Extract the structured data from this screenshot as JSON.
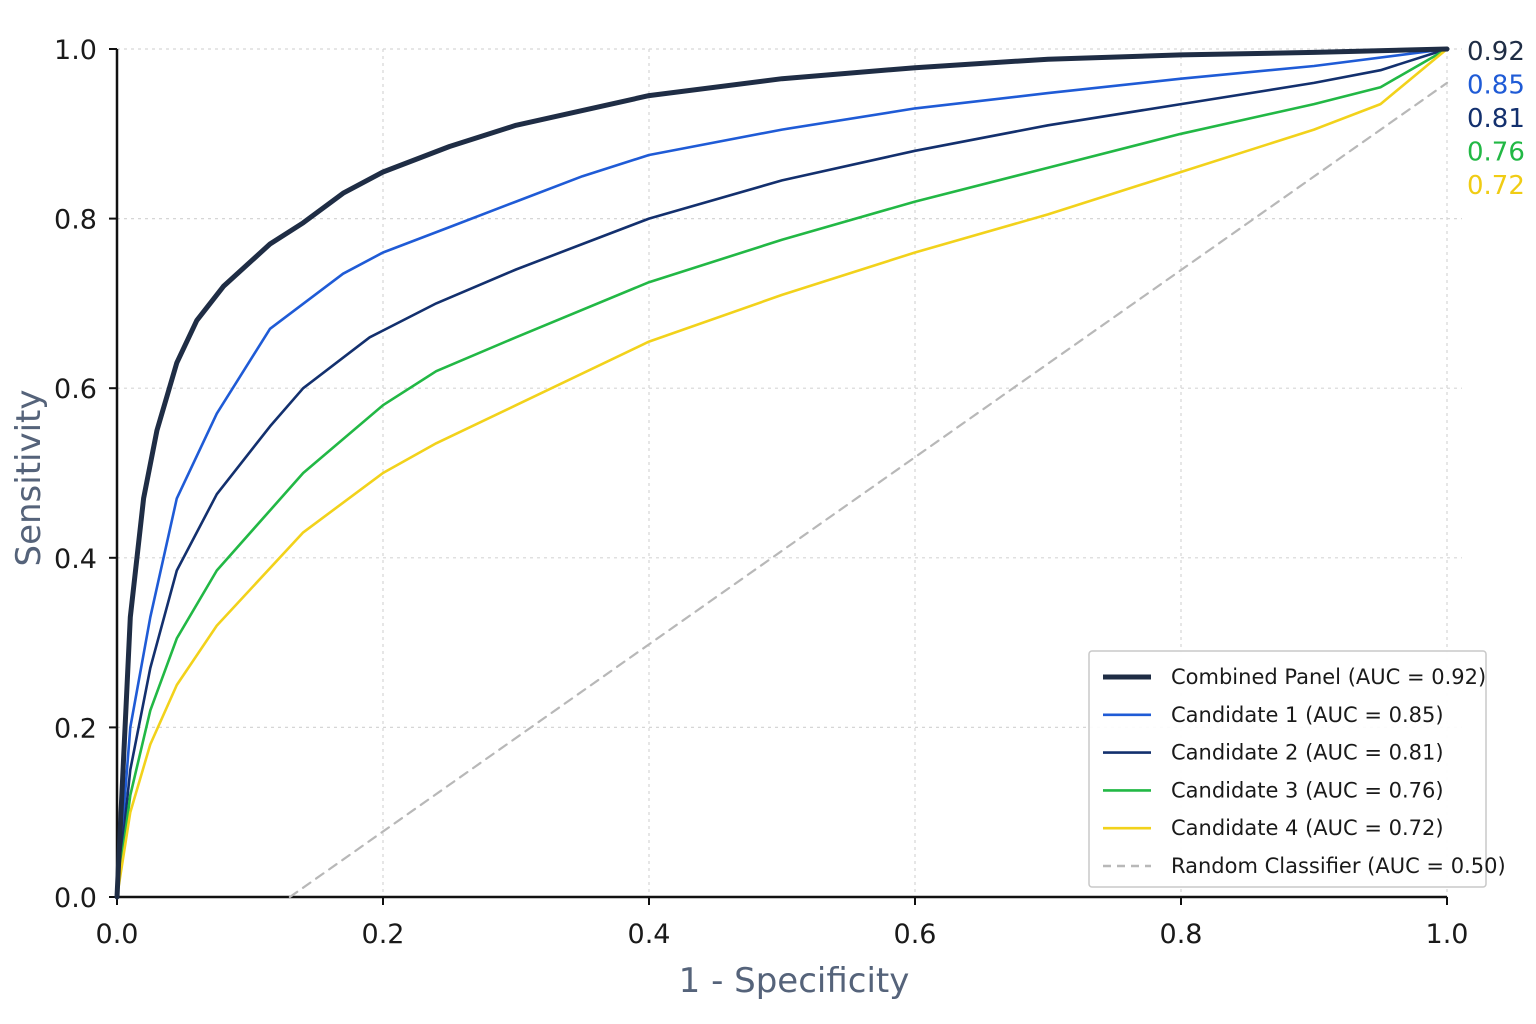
{
  "chart_data": {
    "type": "line",
    "xlabel": "1 - Specificity",
    "ylabel": "Sensitivity",
    "xlim": [
      0,
      1
    ],
    "ylim": [
      0,
      1
    ],
    "xticks": [
      "0.0",
      "0.2",
      "0.4",
      "0.6",
      "0.8",
      "1.0"
    ],
    "yticks": [
      "0.0",
      "0.2",
      "0.4",
      "0.6",
      "0.8",
      "1.0"
    ],
    "grid": true,
    "legend_position": "bottom-right",
    "series": [
      {
        "name": "Combined Panel (AUC = 0.92)",
        "end_label": "0.92",
        "color": "#1f2d45",
        "style": "thick",
        "x": [
          0,
          0.01,
          0.02,
          0.03,
          0.045,
          0.06,
          0.08,
          0.115,
          0.14,
          0.17,
          0.2,
          0.25,
          0.3,
          0.4,
          0.5,
          0.6,
          0.7,
          0.8,
          0.9,
          1.0
        ],
        "y": [
          0,
          0.33,
          0.47,
          0.55,
          0.63,
          0.68,
          0.72,
          0.77,
          0.795,
          0.83,
          0.855,
          0.885,
          0.91,
          0.945,
          0.965,
          0.978,
          0.988,
          0.993,
          0.996,
          1.0
        ]
      },
      {
        "name": "Candidate 1 (AUC = 0.85)",
        "end_label": "0.85",
        "color": "#1f5bd6",
        "style": "solid",
        "x": [
          0,
          0.01,
          0.025,
          0.045,
          0.075,
          0.115,
          0.17,
          0.2,
          0.25,
          0.3,
          0.35,
          0.4,
          0.5,
          0.6,
          0.7,
          0.8,
          0.9,
          1.0
        ],
        "y": [
          0,
          0.2,
          0.33,
          0.47,
          0.57,
          0.67,
          0.735,
          0.76,
          0.79,
          0.82,
          0.85,
          0.875,
          0.905,
          0.93,
          0.948,
          0.965,
          0.98,
          1.0
        ]
      },
      {
        "name": "Candidate 2 (AUC = 0.81)",
        "end_label": "0.81",
        "color": "#13306e",
        "style": "solid",
        "x": [
          0,
          0.01,
          0.025,
          0.045,
          0.075,
          0.115,
          0.14,
          0.19,
          0.24,
          0.3,
          0.35,
          0.4,
          0.5,
          0.6,
          0.7,
          0.8,
          0.9,
          0.95,
          1.0
        ],
        "y": [
          0,
          0.15,
          0.27,
          0.385,
          0.475,
          0.555,
          0.6,
          0.66,
          0.7,
          0.74,
          0.77,
          0.8,
          0.845,
          0.88,
          0.91,
          0.935,
          0.96,
          0.975,
          1.0
        ]
      },
      {
        "name": "Candidate 3 (AUC = 0.76)",
        "end_label": "0.76",
        "color": "#22b845",
        "style": "solid",
        "x": [
          0,
          0.01,
          0.025,
          0.045,
          0.075,
          0.14,
          0.2,
          0.24,
          0.3,
          0.4,
          0.5,
          0.6,
          0.7,
          0.8,
          0.9,
          0.95,
          1.0
        ],
        "y": [
          0,
          0.12,
          0.22,
          0.305,
          0.385,
          0.5,
          0.58,
          0.62,
          0.66,
          0.725,
          0.775,
          0.82,
          0.86,
          0.9,
          0.935,
          0.955,
          1.0
        ]
      },
      {
        "name": "Candidate 4 (AUC = 0.72)",
        "end_label": "0.72",
        "color": "#f2d21b",
        "style": "solid",
        "x": [
          0,
          0.01,
          0.025,
          0.045,
          0.075,
          0.14,
          0.2,
          0.24,
          0.3,
          0.4,
          0.5,
          0.6,
          0.7,
          0.8,
          0.9,
          0.95,
          1.0
        ],
        "y": [
          0,
          0.1,
          0.18,
          0.25,
          0.32,
          0.43,
          0.5,
          0.535,
          0.58,
          0.655,
          0.71,
          0.76,
          0.805,
          0.855,
          0.905,
          0.935,
          1.0
        ]
      },
      {
        "name": "Random Classifier (AUC = 0.50)",
        "color": "#b8b8b8",
        "style": "dashed",
        "x": [
          0.13,
          1.0
        ],
        "y": [
          0.0,
          0.96
        ]
      }
    ]
  }
}
